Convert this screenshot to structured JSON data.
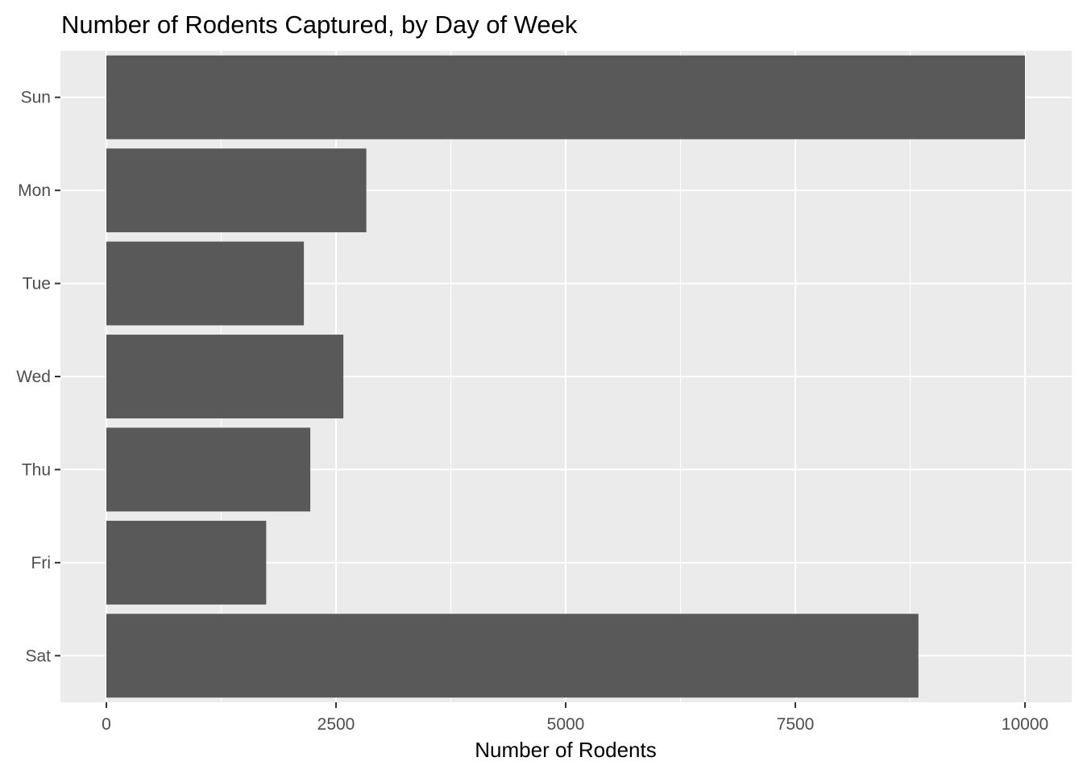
{
  "chart_data": {
    "type": "bar",
    "orientation": "horizontal",
    "title": "Number of Rodents Captured, by Day of Week",
    "xlabel": "Number of Rodents",
    "ylabel": "",
    "categories": [
      "Sun",
      "Mon",
      "Tue",
      "Wed",
      "Thu",
      "Fri",
      "Sat"
    ],
    "values": [
      10000,
      2830,
      2150,
      2580,
      2220,
      1740,
      8840
    ],
    "xlim": [
      -500,
      10500
    ],
    "x_ticks": [
      0,
      2500,
      5000,
      7500,
      10000
    ],
    "x_tick_labels": [
      "0",
      "2500",
      "5000",
      "7500",
      "10000"
    ],
    "grid": true,
    "legend": "none"
  },
  "colors": {
    "panel_background": "#ebebeb",
    "grid_major": "#ffffff",
    "bar_fill": "#595959",
    "tick_text": "#4d4d4d",
    "tick_mark": "#333333"
  }
}
